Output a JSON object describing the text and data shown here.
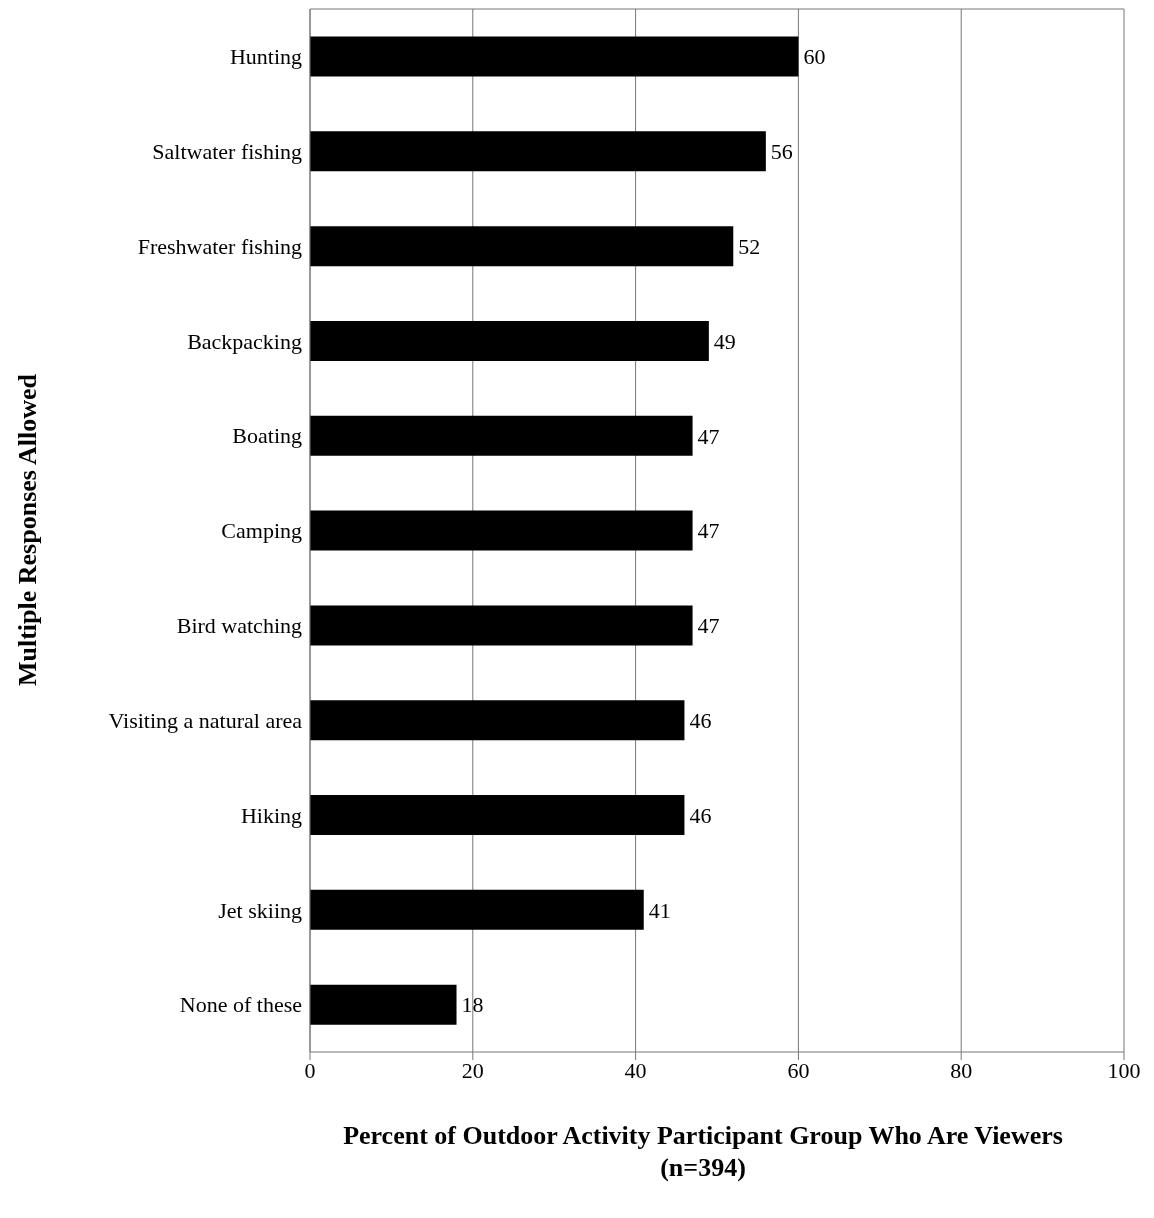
{
  "chart_data": {
    "type": "bar",
    "orientation": "horizontal",
    "xlabel": "Percent  of Outdoor Activity Participant Group Who Are Viewers (n=394)",
    "ylabel": "Multiple Responses Allowed",
    "categories": [
      "Hunting",
      "Saltwater fishing",
      "Freshwater fishing",
      "Backpacking",
      "Boating",
      "Camping",
      "Bird watching",
      "Visiting a natural area",
      "Hiking",
      "Jet skiing",
      "None of these"
    ],
    "values": [
      60,
      56,
      52,
      49,
      47,
      47,
      47,
      46,
      46,
      41,
      18
    ],
    "color": "#000000",
    "xlim": [
      0,
      100
    ],
    "xticks": [
      0,
      20,
      40,
      60,
      80,
      100
    ],
    "grid": "x",
    "data_labels": true,
    "legend": false
  }
}
